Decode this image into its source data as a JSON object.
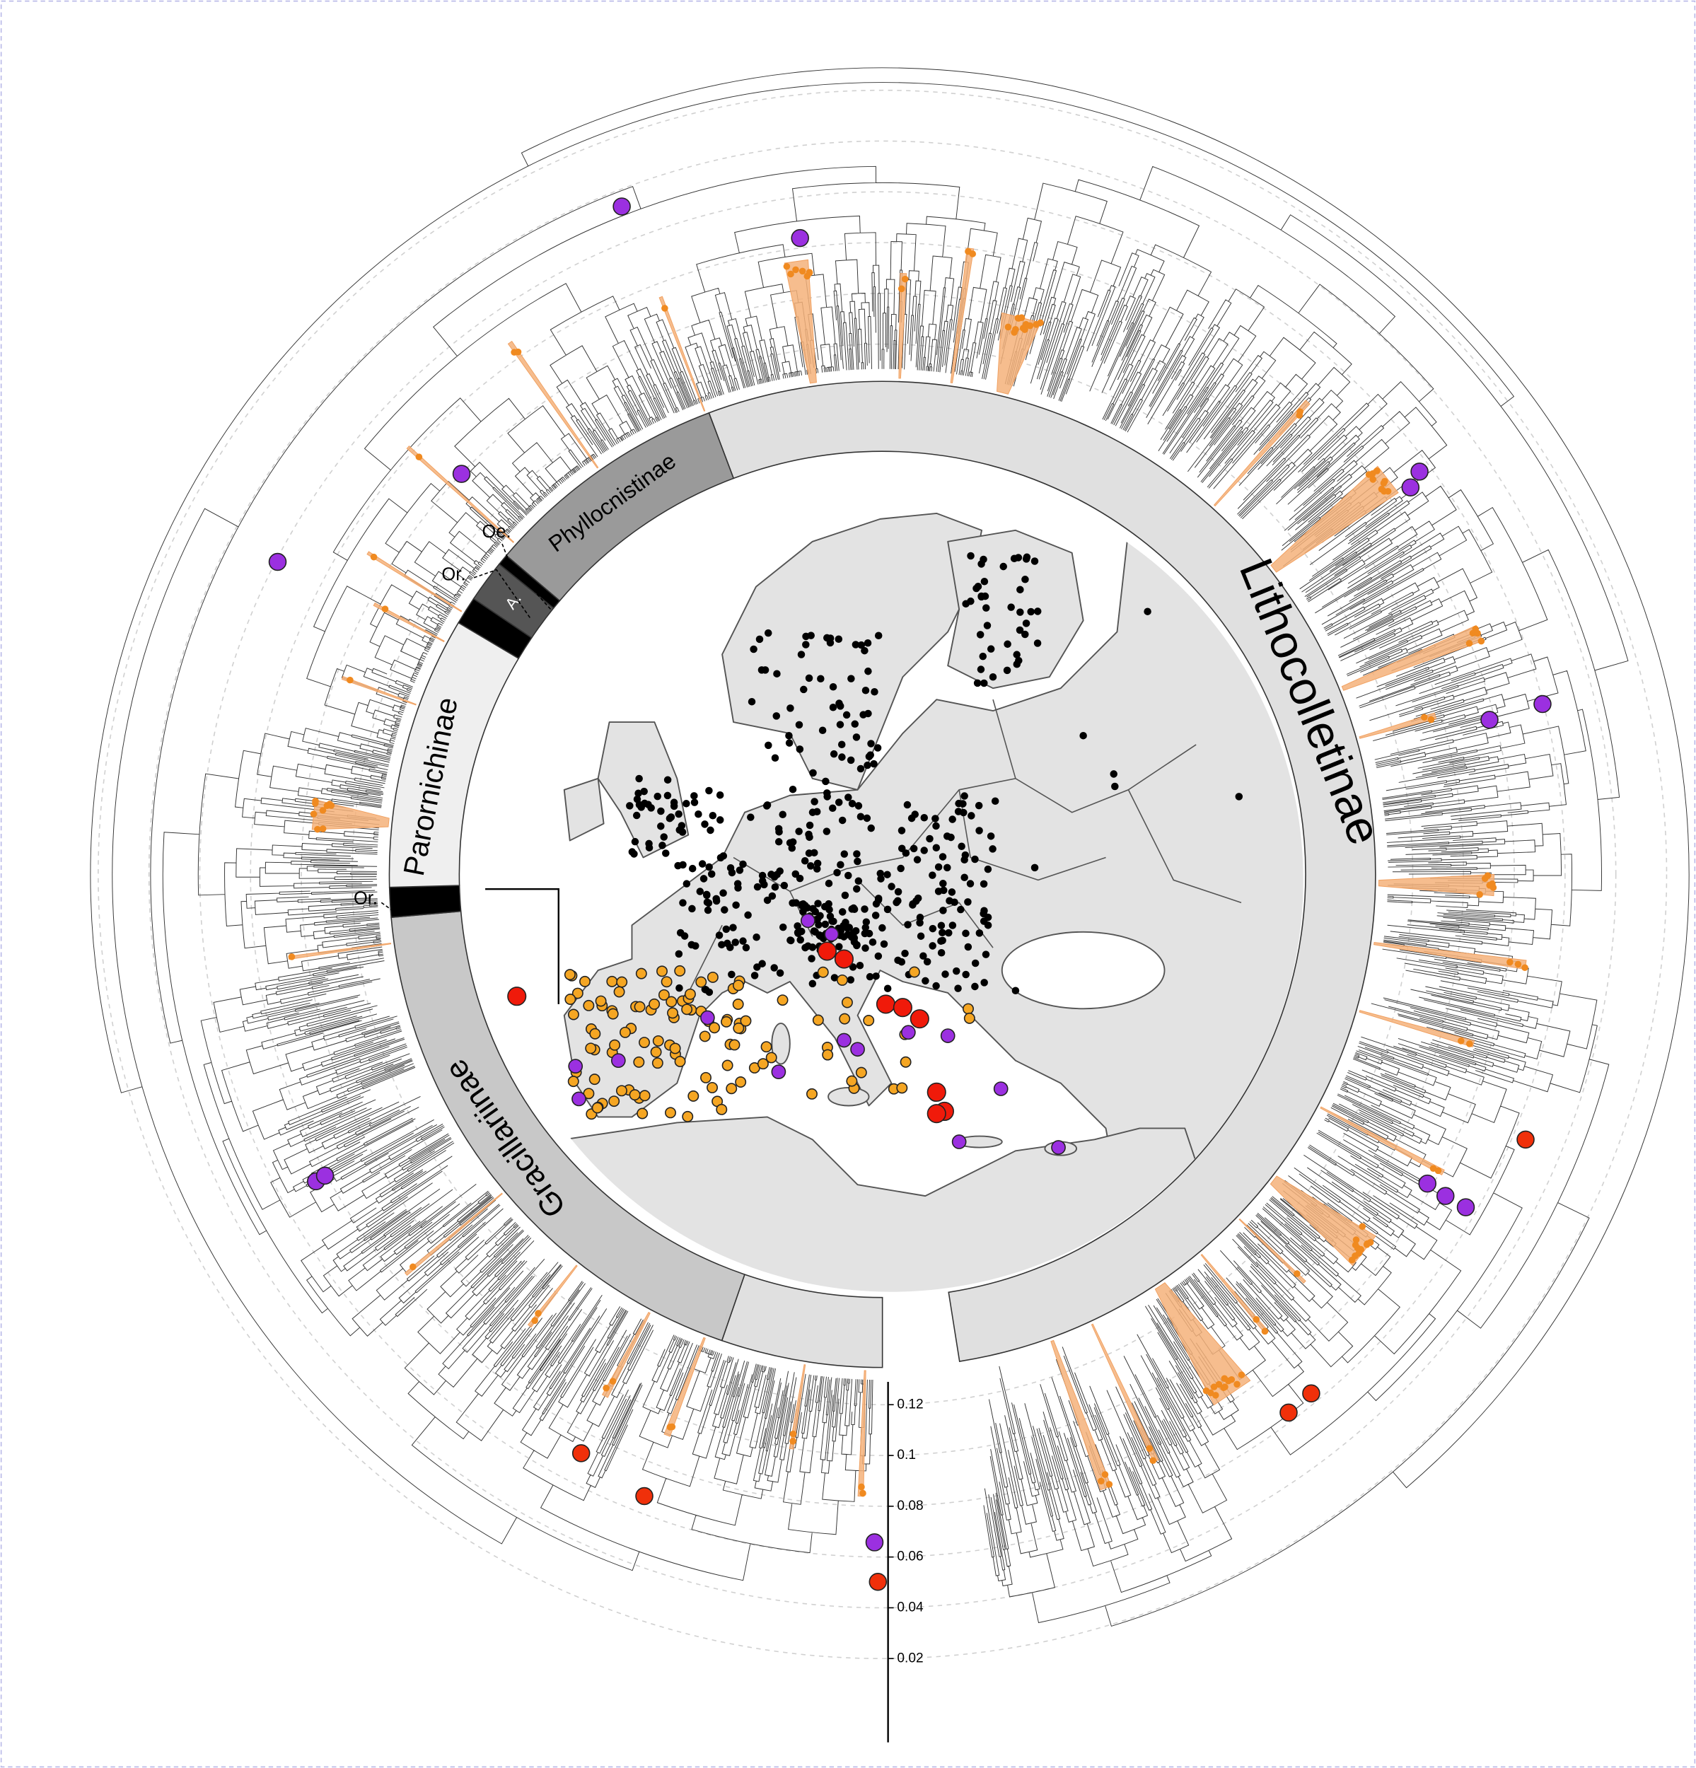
{
  "chart_data": {
    "type": "circular-tree",
    "clades": [
      "Lithocolletinae",
      "Phyllocnistinae",
      "Parornichinae",
      "Gracillariinae",
      "A."
    ],
    "small_labels": [
      "Oe.",
      "Or.",
      "Or."
    ],
    "ylim": [
      -0.013,
      0.129
    ],
    "yticks": [
      0.02,
      0.04,
      0.06,
      0.08,
      0.1,
      0.12
    ]
  }
}
